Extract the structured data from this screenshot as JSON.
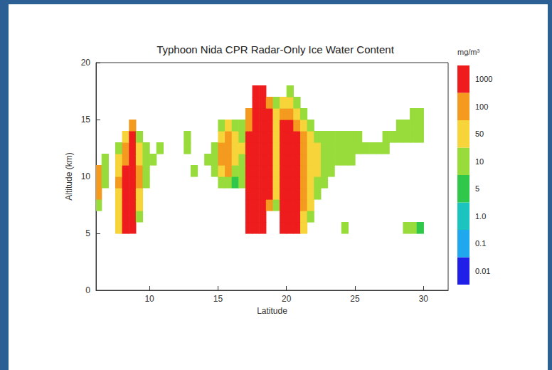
{
  "chart_data": {
    "type": "heatmap",
    "title": "Typhoon Nida CPR Radar-Only Ice Water Content",
    "x_label": "Latitude",
    "y_label": "Altitude (km)",
    "xlim": [
      6.1,
      31.8
    ],
    "ylim": [
      0,
      20
    ],
    "xticks": [
      10,
      15,
      20,
      25,
      30
    ],
    "yticks": [
      0,
      5,
      10,
      15,
      20
    ],
    "grid": false,
    "latitude": [
      6.25,
      6.75,
      7.25,
      7.75,
      8.25,
      8.75,
      9.25,
      9.75,
      10.25,
      10.75,
      11.25,
      11.75,
      12.25,
      12.75,
      13.25,
      13.75,
      14.25,
      14.75,
      15.25,
      15.75,
      16.25,
      16.75,
      17.25,
      17.75,
      18.25,
      18.75,
      19.25,
      19.75,
      20.25,
      20.75,
      21.25,
      21.75,
      22.25,
      22.75,
      23.25,
      23.75,
      24.25,
      24.75,
      25.25,
      25.75,
      26.25,
      26.75,
      27.25,
      27.75,
      28.25,
      28.75,
      29.25,
      29.75,
      30.25
    ],
    "altitude": [
      5.5,
      6.5,
      7.5,
      8.5,
      9.5,
      10.5,
      11.5,
      12.5,
      13.5,
      14.5,
      15.5,
      16.5,
      17.5
    ],
    "ice_water_content": [
      [
        null,
        null,
        null,
        70,
        2000,
        2000,
        null,
        null,
        null,
        null,
        null,
        null,
        null,
        null,
        null,
        null,
        null,
        null,
        null,
        null,
        null,
        null,
        2000,
        2000,
        2000,
        null,
        null,
        2000,
        2000,
        2000,
        70,
        null,
        null,
        null,
        null,
        null,
        20,
        null,
        null,
        null,
        null,
        null,
        null,
        null,
        null,
        20,
        20,
        7,
        null
      ],
      [
        null,
        null,
        null,
        70,
        2000,
        2000,
        20,
        null,
        null,
        null,
        null,
        null,
        null,
        null,
        null,
        null,
        null,
        null,
        null,
        null,
        null,
        null,
        2000,
        2000,
        2000,
        null,
        null,
        2000,
        2000,
        2000,
        70,
        20,
        null,
        null,
        null,
        null,
        null,
        null,
        null,
        null,
        null,
        null,
        null,
        null,
        null,
        null,
        null,
        null,
        null
      ],
      [
        20,
        null,
        null,
        70,
        2000,
        2000,
        70,
        null,
        null,
        null,
        null,
        null,
        null,
        null,
        null,
        null,
        null,
        null,
        null,
        null,
        null,
        null,
        2000,
        2000,
        2000,
        200,
        20,
        2000,
        2000,
        2000,
        200,
        70,
        null,
        null,
        null,
        null,
        null,
        null,
        null,
        null,
        null,
        null,
        null,
        null,
        null,
        null,
        null,
        null,
        null
      ],
      [
        200,
        null,
        null,
        70,
        2000,
        2000,
        70,
        null,
        null,
        null,
        null,
        null,
        null,
        null,
        null,
        null,
        null,
        null,
        null,
        null,
        null,
        null,
        2000,
        2000,
        2000,
        2000,
        70,
        2000,
        2000,
        2000,
        200,
        70,
        20,
        null,
        null,
        null,
        null,
        null,
        null,
        null,
        null,
        null,
        null,
        null,
        null,
        null,
        null,
        null,
        null
      ],
      [
        200,
        20,
        null,
        200,
        2000,
        2000,
        200,
        20,
        null,
        null,
        null,
        null,
        null,
        null,
        null,
        null,
        null,
        null,
        20,
        20,
        7,
        20,
        2000,
        2000,
        2000,
        2000,
        70,
        2000,
        2000,
        2000,
        200,
        70,
        20,
        20,
        null,
        null,
        null,
        null,
        null,
        null,
        null,
        null,
        null,
        null,
        null,
        null,
        null,
        null,
        null
      ],
      [
        200,
        20,
        null,
        70,
        2000,
        2000,
        200,
        20,
        null,
        null,
        null,
        null,
        null,
        null,
        20,
        null,
        null,
        20,
        70,
        200,
        20,
        20,
        2000,
        2000,
        2000,
        2000,
        70,
        2000,
        2000,
        2000,
        200,
        70,
        70,
        20,
        20,
        null,
        null,
        null,
        null,
        null,
        null,
        null,
        null,
        null,
        null,
        null,
        null,
        null,
        null
      ],
      [
        null,
        20,
        null,
        70,
        200,
        2000,
        70,
        20,
        20,
        null,
        null,
        null,
        null,
        null,
        null,
        null,
        20,
        20,
        200,
        200,
        70,
        20,
        2000,
        2000,
        2000,
        2000,
        70,
        2000,
        2000,
        2000,
        200,
        70,
        70,
        20,
        20,
        20,
        20,
        20,
        null,
        null,
        null,
        null,
        null,
        null,
        null,
        null,
        null,
        null,
        null
      ],
      [
        null,
        null,
        null,
        20,
        200,
        2000,
        70,
        20,
        null,
        20,
        null,
        null,
        null,
        20,
        null,
        null,
        null,
        20,
        200,
        200,
        70,
        70,
        2000,
        2000,
        2000,
        2000,
        70,
        2000,
        2000,
        2000,
        200,
        70,
        70,
        20,
        20,
        20,
        20,
        20,
        20,
        20,
        20,
        20,
        20,
        null,
        null,
        null,
        null,
        null,
        null
      ],
      [
        null,
        null,
        null,
        null,
        70,
        2000,
        20,
        null,
        null,
        null,
        null,
        null,
        null,
        20,
        null,
        null,
        null,
        null,
        70,
        200,
        70,
        20,
        2000,
        2000,
        2000,
        2000,
        70,
        2000,
        2000,
        2000,
        200,
        70,
        20,
        20,
        20,
        20,
        20,
        20,
        20,
        null,
        null,
        null,
        20,
        20,
        20,
        20,
        20,
        20,
        null
      ],
      [
        null,
        null,
        null,
        null,
        null,
        200,
        null,
        null,
        null,
        null,
        null,
        null,
        null,
        null,
        null,
        null,
        null,
        null,
        20,
        70,
        20,
        20,
        200,
        2000,
        2000,
        2000,
        70,
        2000,
        2000,
        200,
        70,
        20,
        null,
        null,
        null,
        null,
        null,
        null,
        null,
        null,
        null,
        null,
        null,
        null,
        20,
        20,
        20,
        20,
        null
      ],
      [
        null,
        null,
        null,
        null,
        null,
        null,
        null,
        null,
        null,
        null,
        null,
        null,
        null,
        null,
        null,
        null,
        null,
        null,
        null,
        null,
        null,
        null,
        200,
        2000,
        2000,
        2000,
        70,
        200,
        200,
        70,
        20,
        null,
        null,
        null,
        null,
        null,
        null,
        null,
        null,
        null,
        null,
        null,
        null,
        null,
        null,
        null,
        20,
        20,
        null
      ],
      [
        null,
        null,
        null,
        null,
        null,
        null,
        null,
        null,
        null,
        null,
        null,
        null,
        null,
        null,
        null,
        null,
        null,
        null,
        null,
        null,
        null,
        null,
        null,
        2000,
        2000,
        200,
        20,
        70,
        70,
        20,
        null,
        null,
        null,
        null,
        null,
        null,
        null,
        null,
        null,
        null,
        null,
        null,
        null,
        null,
        null,
        null,
        null,
        null,
        null
      ],
      [
        null,
        null,
        null,
        null,
        null,
        null,
        null,
        null,
        null,
        null,
        null,
        null,
        null,
        null,
        null,
        null,
        null,
        null,
        null,
        null,
        null,
        null,
        null,
        2000,
        2000,
        null,
        null,
        null,
        20,
        null,
        null,
        null,
        null,
        null,
        null,
        null,
        null,
        null,
        null,
        null,
        null,
        null,
        null,
        null,
        null,
        null,
        null,
        null,
        null
      ]
    ],
    "colorbar": {
      "label": "mg/m³",
      "ticks": [
        0.01,
        0.1,
        {
          "value": 1,
          "label": "1.0"
        },
        5,
        10,
        50,
        100,
        1000
      ],
      "colors": [
        "#1f1fe8",
        "#20a8ee",
        "#1cc4c0",
        "#2fc84a",
        "#98dc3c",
        "#f6d43a",
        "#f49a1e",
        "#ee1c1c"
      ]
    }
  }
}
